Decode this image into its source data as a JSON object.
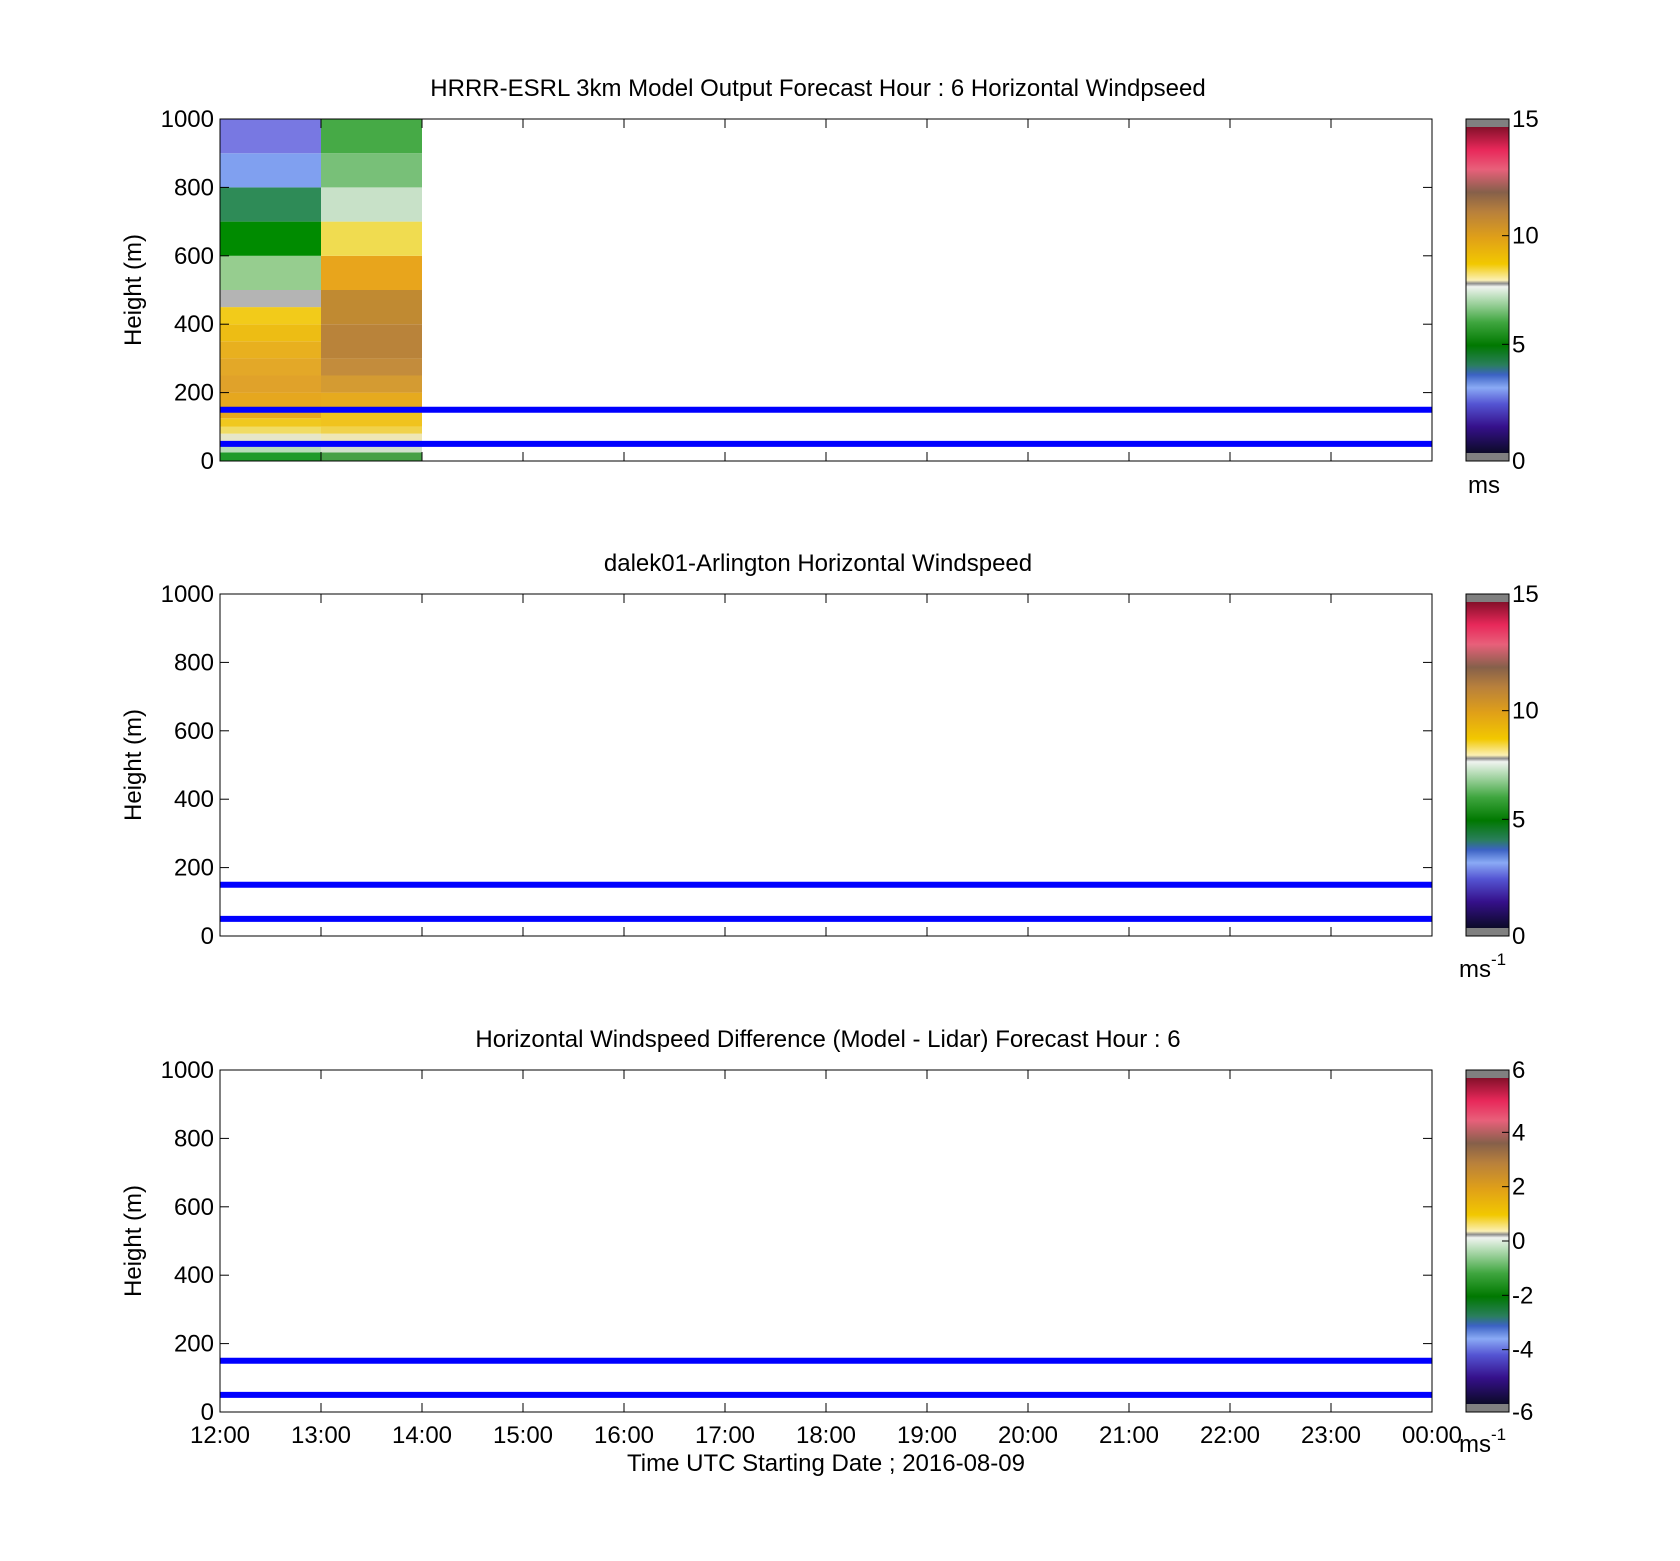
{
  "figure": {
    "xlabel": "Time UTC  Starting Date ; 2016-08-09"
  },
  "colors": {
    "line": "#0000ff",
    "axis": "#000000",
    "background": "#ffffff",
    "colorbar_end_caps": "#808080"
  },
  "chart_data": [
    {
      "type": "heatmap",
      "title": "HRRR-ESRL 3km Model Output   Forecast Hour : 6 Horizontal Windpseed",
      "xlabel": "",
      "ylabel": "Height (m)",
      "xlim": [
        "12:00",
        "00:00"
      ],
      "xticks": [
        "12:00",
        "13:00",
        "14:00",
        "15:00",
        "16:00",
        "17:00",
        "18:00",
        "19:00",
        "20:00",
        "21:00",
        "22:00",
        "23:00",
        "00:00"
      ],
      "show_xtick_labels": false,
      "ylim": [
        0,
        1000
      ],
      "yticks": [
        0,
        200,
        400,
        600,
        800,
        1000
      ],
      "grid": false,
      "colorbar": {
        "ticks": [
          0,
          5,
          10,
          15
        ],
        "min": 0,
        "max": 15,
        "unit": "ms",
        "unit_superscript": ""
      },
      "columns": [
        {
          "start": "12:00",
          "end": "13:00",
          "cells": [
            {
              "z0": 0,
              "z1": 25,
              "color": "#1f9a2a"
            },
            {
              "z0": 25,
              "z1": 55,
              "color": "#b9dcb9"
            },
            {
              "z0": 55,
              "z1": 80,
              "color": "#e6e6c8"
            },
            {
              "z0": 80,
              "z1": 100,
              "color": "#f0dc64"
            },
            {
              "z0": 100,
              "z1": 125,
              "color": "#f0c81e"
            },
            {
              "z0": 125,
              "z1": 200,
              "color": "#e6a71e"
            },
            {
              "z0": 200,
              "z1": 250,
              "color": "#e0a22a"
            },
            {
              "z0": 250,
              "z1": 300,
              "color": "#e3a828"
            },
            {
              "z0": 300,
              "z1": 350,
              "color": "#e8b01f"
            },
            {
              "z0": 350,
              "z1": 400,
              "color": "#edbd14"
            },
            {
              "z0": 400,
              "z1": 450,
              "color": "#f2cb1a"
            },
            {
              "z0": 450,
              "z1": 500,
              "color": "#b4b4b4"
            },
            {
              "z0": 500,
              "z1": 600,
              "color": "#96cd8f"
            },
            {
              "z0": 600,
              "z1": 700,
              "color": "#008b00"
            },
            {
              "z0": 700,
              "z1": 800,
              "color": "#2e8b57"
            },
            {
              "z0": 800,
              "z1": 900,
              "color": "#80a0f0"
            },
            {
              "z0": 900,
              "z1": 1000,
              "color": "#7878e2"
            }
          ]
        },
        {
          "start": "13:00",
          "end": "14:00",
          "cells": [
            {
              "z0": 0,
              "z1": 25,
              "color": "#46a046"
            },
            {
              "z0": 25,
              "z1": 55,
              "color": "#d2e1cd"
            },
            {
              "z0": 55,
              "z1": 80,
              "color": "#eee6b4"
            },
            {
              "z0": 80,
              "z1": 100,
              "color": "#f0d24b"
            },
            {
              "z0": 100,
              "z1": 150,
              "color": "#f0c31e"
            },
            {
              "z0": 150,
              "z1": 200,
              "color": "#e6aa1e"
            },
            {
              "z0": 200,
              "z1": 250,
              "color": "#d49b32"
            },
            {
              "z0": 250,
              "z1": 300,
              "color": "#c38c3c"
            },
            {
              "z0": 300,
              "z1": 400,
              "color": "#b9833a"
            },
            {
              "z0": 400,
              "z1": 500,
              "color": "#c08a32"
            },
            {
              "z0": 500,
              "z1": 600,
              "color": "#e8a51c"
            },
            {
              "z0": 600,
              "z1": 700,
              "color": "#f0dc50"
            },
            {
              "z0": 700,
              "z1": 800,
              "color": "#c8e1c8"
            },
            {
              "z0": 800,
              "z1": 900,
              "color": "#78c078"
            },
            {
              "z0": 900,
              "z1": 1000,
              "color": "#46aa46"
            }
          ]
        }
      ],
      "hlines": [
        50,
        150
      ]
    },
    {
      "type": "heatmap",
      "title": "dalek01-Arlington  Horizontal Windspeed",
      "xlabel": "",
      "ylabel": "Height (m)",
      "xlim": [
        "12:00",
        "00:00"
      ],
      "xticks": [
        "12:00",
        "13:00",
        "14:00",
        "15:00",
        "16:00",
        "17:00",
        "18:00",
        "19:00",
        "20:00",
        "21:00",
        "22:00",
        "23:00",
        "00:00"
      ],
      "show_xtick_labels": false,
      "ylim": [
        0,
        1000
      ],
      "yticks": [
        0,
        200,
        400,
        600,
        800,
        1000
      ],
      "grid": false,
      "colorbar": {
        "ticks": [
          0,
          5,
          10,
          15
        ],
        "min": 0,
        "max": 15,
        "unit": "ms",
        "unit_superscript": "-1"
      },
      "columns": [],
      "hlines": [
        50,
        150
      ]
    },
    {
      "type": "heatmap",
      "title": "Horizontal Windspeed Difference (Model - Lidar) Forecast Hour : 6",
      "xlabel": "Time UTC  Starting Date ; 2016-08-09",
      "ylabel": "Height (m)",
      "xlim": [
        "12:00",
        "00:00"
      ],
      "xticks": [
        "12:00",
        "13:00",
        "14:00",
        "15:00",
        "16:00",
        "17:00",
        "18:00",
        "19:00",
        "20:00",
        "21:00",
        "22:00",
        "23:00",
        "00:00"
      ],
      "show_xtick_labels": true,
      "ylim": [
        0,
        1000
      ],
      "yticks": [
        0,
        200,
        400,
        600,
        800,
        1000
      ],
      "grid": false,
      "colorbar": {
        "ticks": [
          -6,
          -4,
          -2,
          0,
          2,
          4,
          6
        ],
        "min": -6,
        "max": 6,
        "unit": "ms",
        "unit_superscript": "-1"
      },
      "columns": [],
      "hlines": [
        50,
        150
      ]
    }
  ]
}
